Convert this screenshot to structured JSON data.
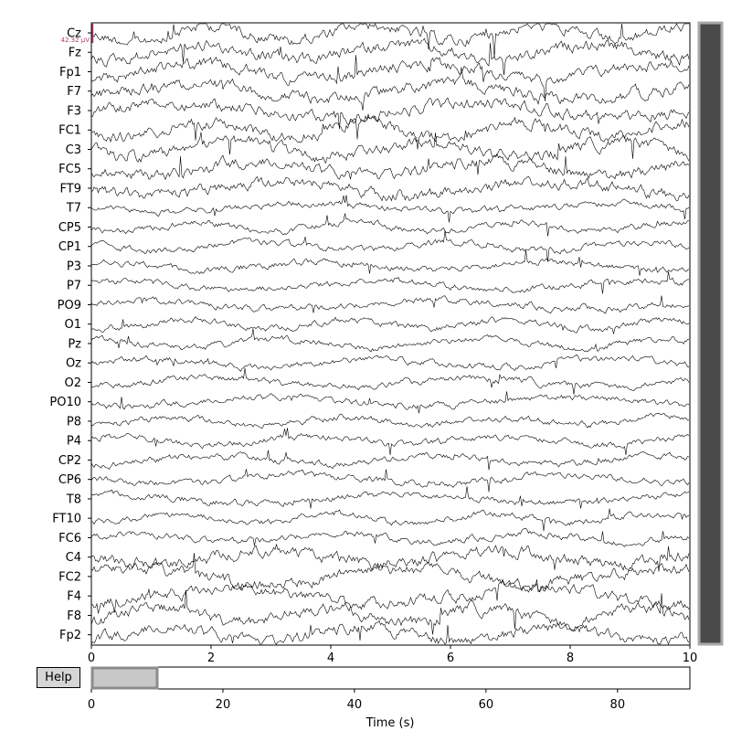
{
  "channels": [
    "Cz",
    "Fz",
    "Fp1",
    "F7",
    "F3",
    "FC1",
    "C3",
    "FC5",
    "FT9",
    "T7",
    "CP5",
    "CP1",
    "P3",
    "P7",
    "PO9",
    "O1",
    "Pz",
    "Oz",
    "O2",
    "PO10",
    "P8",
    "P4",
    "CP2",
    "CP6",
    "T8",
    "FT10",
    "FC6",
    "C4",
    "FC2",
    "F4",
    "F8",
    "Fp2"
  ],
  "scale_label": "42.32 µV",
  "main_x_ticks": [
    "0",
    "2",
    "4",
    "6",
    "8",
    "10"
  ],
  "main_x_range": [
    0,
    10
  ],
  "overview_x_ticks": [
    "0",
    "20",
    "40",
    "60",
    "80"
  ],
  "overview_x_range": [
    0,
    91
  ],
  "overview_window": [
    0,
    10
  ],
  "xlabel": "Time (s)",
  "help_label": "Help",
  "colors": {
    "trace": "#000000",
    "scale_bar": "#b03a6f",
    "scrollbar_thumb": "#4a4a4a",
    "scrollbar_border": "#a8a8a8",
    "window_fill": "#c8c8c8",
    "window_border": "#8c8c8c"
  }
}
